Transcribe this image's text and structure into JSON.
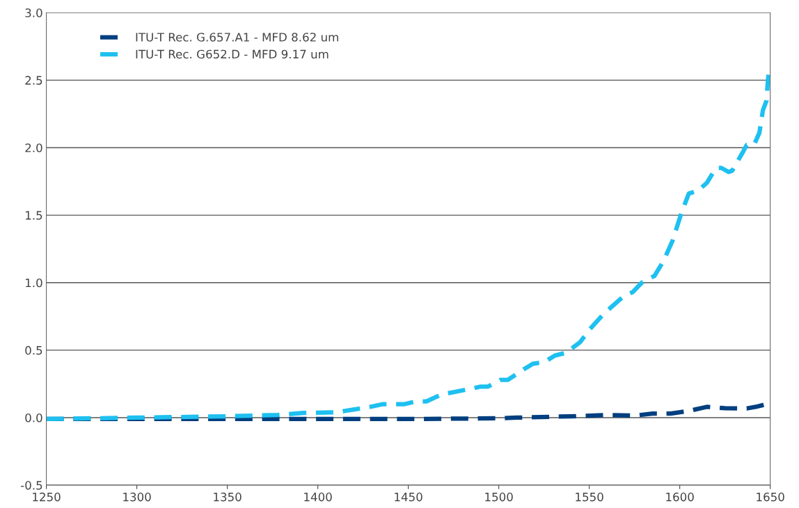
{
  "chart_data": {
    "type": "line",
    "series": [
      {
        "name": "ITU-T Rec. G.657.A1 - MFD 8.62 um",
        "color": "#003f7f",
        "x": [
          1250,
          1300,
          1350,
          1400,
          1450,
          1500,
          1510,
          1540,
          1560,
          1575,
          1585,
          1595,
          1605,
          1615,
          1625,
          1637,
          1642,
          1648,
          1650
        ],
        "values": [
          -0.01,
          -0.01,
          -0.01,
          -0.01,
          -0.01,
          -0.005,
          0.0,
          0.01,
          0.02,
          0.015,
          0.03,
          0.03,
          0.05,
          0.08,
          0.07,
          0.068,
          0.08,
          0.1,
          0.1
        ]
      },
      {
        "name": "ITU-T Rec. G652.D - MFD 9.17 um",
        "color": "#1ec0f0",
        "x": [
          1250,
          1300,
          1350,
          1378,
          1392,
          1411,
          1415,
          1429,
          1436,
          1448,
          1454,
          1460,
          1468,
          1483,
          1490,
          1494,
          1501,
          1505,
          1514,
          1519,
          1525,
          1531,
          1537,
          1545,
          1550,
          1558,
          1569,
          1574,
          1579,
          1586,
          1591,
          1596,
          1601,
          1605,
          1610,
          1615,
          1620,
          1623,
          1627,
          1629,
          1635,
          1637,
          1641,
          1644,
          1646,
          1648,
          1648.5,
          1649
        ],
        "values": [
          -0.01,
          0.0,
          0.01,
          0.02,
          0.035,
          0.04,
          0.05,
          0.08,
          0.1,
          0.1,
          0.12,
          0.12,
          0.17,
          0.21,
          0.23,
          0.23,
          0.28,
          0.28,
          0.36,
          0.4,
          0.41,
          0.46,
          0.48,
          0.56,
          0.65,
          0.77,
          0.9,
          0.93,
          1.0,
          1.05,
          1.16,
          1.31,
          1.52,
          1.66,
          1.68,
          1.74,
          1.85,
          1.85,
          1.82,
          1.83,
          1.97,
          2.02,
          2.02,
          2.11,
          2.28,
          2.35,
          2.46,
          2.54
        ]
      }
    ],
    "xlim": [
      1250,
      1650
    ],
    "xticks": [
      1250,
      1300,
      1350,
      1400,
      1450,
      1500,
      1550,
      1600,
      1650
    ],
    "ylim": [
      -0.5,
      3.0
    ],
    "yticks": [
      {
        "value": -0.5,
        "label": "-0.5"
      },
      {
        "value": 0.0,
        "label": "0.0"
      },
      {
        "value": 0.5,
        "label": "0.5"
      },
      {
        "value": 1.0,
        "label": "1.0"
      },
      {
        "value": 1.5,
        "label": "1.5"
      },
      {
        "value": 2.0,
        "label": "2.0"
      },
      {
        "value": 2.5,
        "label": "2.5"
      },
      {
        "value": 3.0,
        "label": "3.0"
      }
    ],
    "grid": "y",
    "legend": "top left",
    "line_style": "dashed",
    "marker": "none"
  }
}
